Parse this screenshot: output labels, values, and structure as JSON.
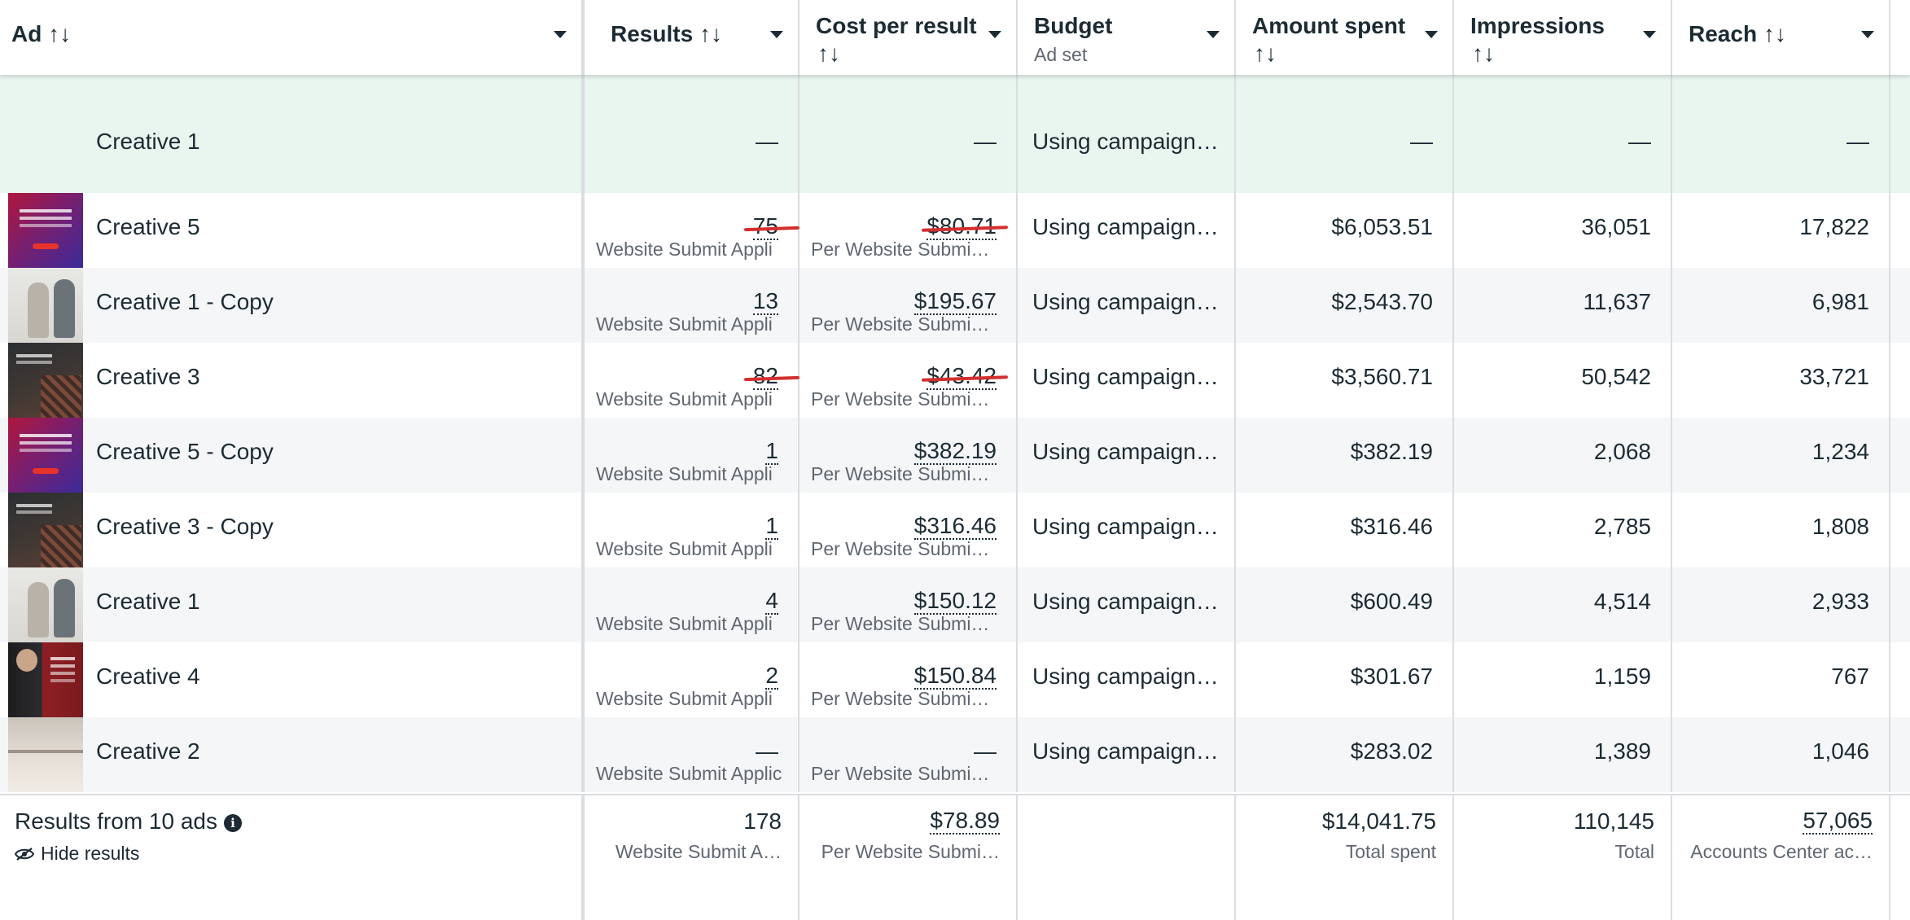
{
  "header": {
    "columns": [
      {
        "label": "Ad",
        "sub": "",
        "sort": "↑↓",
        "sort_below": false
      },
      {
        "label": "Results",
        "sub": "",
        "sort": "↑↓",
        "sort_below": false
      },
      {
        "label": "Cost per result",
        "sub": "",
        "sort": "↑↓",
        "sort_below": true
      },
      {
        "label": "Budget",
        "sub": "Ad set",
        "sort": "",
        "sort_below": false
      },
      {
        "label": "Amount spent",
        "sub": "",
        "sort": "↑↓",
        "sort_below": true
      },
      {
        "label": "Impressions",
        "sub": "",
        "sort": "↑↓",
        "sort_below": true
      },
      {
        "label": "Reach",
        "sub": "",
        "sort": "↑↓",
        "sort_below": false
      }
    ]
  },
  "group_row": {
    "name": "Creative 1",
    "results": "—",
    "cost": "—",
    "budget": "Using campaign…",
    "amount": "—",
    "impressions": "—",
    "reach": "—"
  },
  "rows": [
    {
      "name": "Creative 5",
      "thumb": "t-red",
      "results": "75",
      "results_sub": "Website Submit Appli",
      "cost": "$80.71",
      "cost_sub": "Per Website Submi…",
      "budget": "Using campaign…",
      "amount": "$6,053.51",
      "impressions": "36,051",
      "reach": "17,822",
      "highlight": true
    },
    {
      "name": "Creative 1 - Copy",
      "thumb": "t-people",
      "results": "13",
      "results_sub": "Website Submit Appli",
      "cost": "$195.67",
      "cost_sub": "Per Website Submi…",
      "budget": "Using campaign…",
      "amount": "$2,543.70",
      "impressions": "11,637",
      "reach": "6,981",
      "highlight": false
    },
    {
      "name": "Creative 3",
      "thumb": "t-dark",
      "results": "82",
      "results_sub": "Website Submit Appli",
      "cost": "$43.42",
      "cost_sub": "Per Website Submi…",
      "budget": "Using campaign…",
      "amount": "$3,560.71",
      "impressions": "50,542",
      "reach": "33,721",
      "highlight": true
    },
    {
      "name": "Creative 5 - Copy",
      "thumb": "t-red",
      "results": "1",
      "results_sub": "Website Submit Appli",
      "cost": "$382.19",
      "cost_sub": "Per Website Submi…",
      "budget": "Using campaign…",
      "amount": "$382.19",
      "impressions": "2,068",
      "reach": "1,234",
      "highlight": false
    },
    {
      "name": "Creative 3 - Copy",
      "thumb": "t-dark",
      "results": "1",
      "results_sub": "Website Submit Appli",
      "cost": "$316.46",
      "cost_sub": "Per Website Submi…",
      "budget": "Using campaign…",
      "amount": "$316.46",
      "impressions": "2,785",
      "reach": "1,808",
      "highlight": false
    },
    {
      "name": "Creative 1",
      "thumb": "t-people",
      "results": "4",
      "results_sub": "Website Submit Appli",
      "cost": "$150.12",
      "cost_sub": "Per Website Submi…",
      "budget": "Using campaign…",
      "amount": "$600.49",
      "impressions": "4,514",
      "reach": "2,933",
      "highlight": false
    },
    {
      "name": "Creative 4",
      "thumb": "t-suit",
      "results": "2",
      "results_sub": "Website Submit Appli",
      "cost": "$150.84",
      "cost_sub": "Per Website Submi…",
      "budget": "Using campaign…",
      "amount": "$301.67",
      "impressions": "1,159",
      "reach": "767",
      "highlight": false
    },
    {
      "name": "Creative 2",
      "thumb": "t-desk",
      "results": "—",
      "results_sub": "Website Submit Applic",
      "cost": "—",
      "cost_sub": "Per Website Submi…",
      "budget": "Using campaign…",
      "amount": "$283.02",
      "impressions": "1,389",
      "reach": "1,046",
      "highlight": false
    }
  ],
  "footer": {
    "title": "Results from 10 ads",
    "info_icon": "i",
    "hide_label": "Hide results",
    "results": "178",
    "results_sub": "Website Submit A…",
    "cost": "$78.89",
    "cost_sub": "Per Website Submi…",
    "amount": "$14,041.75",
    "amount_sub": "Total spent",
    "impressions": "110,145",
    "impressions_sub": "Total",
    "reach": "57,065",
    "reach_sub": "Accounts Center ac…"
  },
  "colors": {
    "text": "#1c2b33",
    "muted": "#606770",
    "group_row_bg": "#e9f5ef",
    "striped_row_bg": "#f5f6f7",
    "annotation_red": "#d32f2f"
  },
  "icons": {
    "sort": "sort-arrows-icon",
    "dropdown": "caret-down-icon",
    "info": "info-icon",
    "hide": "eye-slash-icon"
  }
}
